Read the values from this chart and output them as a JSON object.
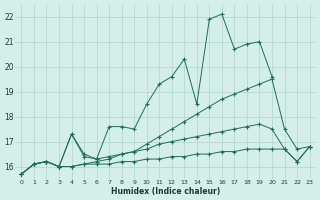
{
  "xlabel": "Humidex (Indice chaleur)",
  "background_color": "#d4eee8",
  "grid_color": "#b8d8d2",
  "line_color": "#1a6e5e",
  "xlim": [
    -0.5,
    23.5
  ],
  "ylim": [
    15.5,
    22.5
  ],
  "xticks": [
    0,
    1,
    2,
    3,
    4,
    5,
    6,
    7,
    8,
    9,
    10,
    11,
    12,
    13,
    14,
    15,
    16,
    17,
    18,
    19,
    20,
    21,
    22,
    23
  ],
  "yticks": [
    16,
    17,
    18,
    19,
    20,
    21,
    22
  ],
  "series": [
    {
      "x": [
        0,
        1,
        2,
        3,
        4,
        5,
        6,
        7,
        8,
        9,
        10,
        11,
        12,
        13,
        14,
        15,
        16,
        17,
        18,
        19,
        20
      ],
      "y": [
        15.7,
        16.1,
        16.2,
        16.0,
        17.3,
        16.5,
        16.3,
        17.6,
        17.6,
        17.5,
        18.5,
        19.3,
        19.6,
        20.3,
        18.5,
        21.9,
        22.1,
        20.7,
        20.9,
        21.0,
        19.6
      ]
    },
    {
      "x": [
        0,
        1,
        2,
        3,
        4,
        5,
        6,
        7,
        8,
        9,
        10,
        11,
        12,
        13,
        14,
        15,
        16,
        17,
        18,
        19,
        20,
        21,
        22,
        23
      ],
      "y": [
        15.7,
        16.1,
        16.2,
        16.0,
        16.0,
        16.1,
        16.1,
        16.1,
        16.2,
        16.2,
        16.3,
        16.3,
        16.4,
        16.4,
        16.5,
        16.5,
        16.6,
        16.6,
        16.7,
        16.7,
        16.7,
        16.7,
        16.2,
        16.8
      ]
    },
    {
      "x": [
        0,
        1,
        2,
        3,
        4,
        5,
        6,
        7,
        8,
        9,
        10,
        11,
        12,
        13,
        14,
        15,
        16,
        17,
        18,
        19,
        20,
        21,
        22,
        23
      ],
      "y": [
        15.7,
        16.1,
        16.2,
        16.0,
        16.0,
        16.1,
        16.2,
        16.3,
        16.5,
        16.6,
        16.9,
        17.2,
        17.5,
        17.8,
        18.1,
        18.4,
        18.7,
        18.9,
        19.1,
        19.3,
        19.5,
        17.5,
        16.7,
        16.8
      ]
    },
    {
      "x": [
        0,
        1,
        2,
        3,
        4,
        5,
        6,
        7,
        8,
        9,
        10,
        11,
        12,
        13,
        14,
        15,
        16,
        17,
        18,
        19,
        20,
        21,
        22,
        23
      ],
      "y": [
        15.7,
        16.1,
        16.2,
        16.0,
        17.3,
        16.4,
        16.3,
        16.4,
        16.5,
        16.6,
        16.7,
        16.9,
        17.0,
        17.1,
        17.2,
        17.3,
        17.4,
        17.5,
        17.6,
        17.7,
        17.5,
        16.7,
        16.2,
        16.8
      ]
    }
  ]
}
